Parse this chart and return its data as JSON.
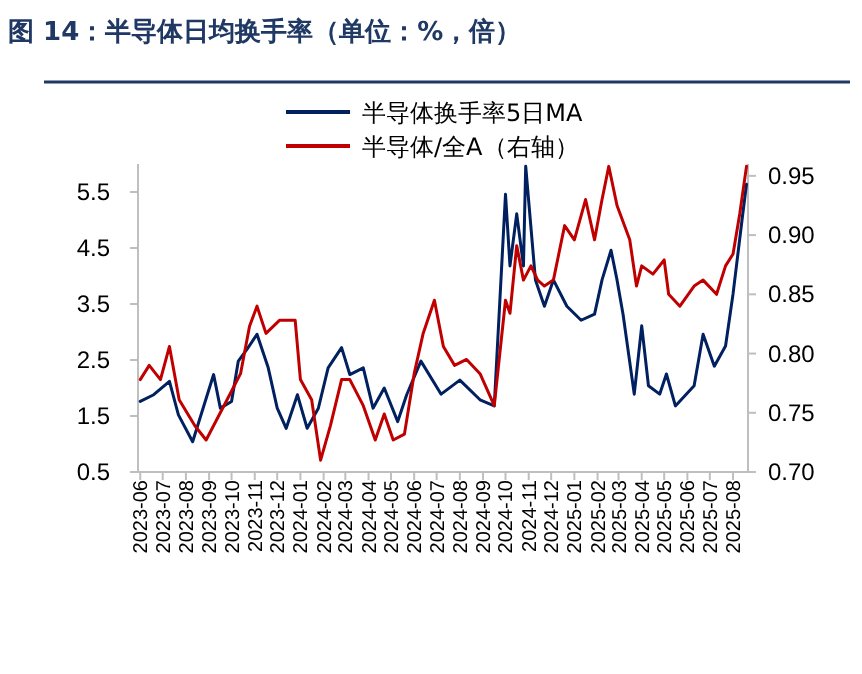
{
  "chart_data": {
    "type": "line",
    "title": "图 14：半导体日均换手率（单位：%，倍）",
    "legend": "top",
    "xlim": [
      "2023-05-29",
      "2025-08-21"
    ],
    "xticks": [
      "2023-06",
      "2023-07",
      "2023-08",
      "2023-09",
      "2023-10",
      "2023-11",
      "2023-12",
      "2024-01",
      "2024-02",
      "2024-03",
      "2024-04",
      "2024-05",
      "2024-06",
      "2024-07",
      "2024-08",
      "2024-09",
      "2024-10",
      "2024-11",
      "2024-12",
      "2025-01",
      "2025-02",
      "2025-03",
      "2025-04",
      "2025-05",
      "2025-06",
      "2025-07",
      "2025-08"
    ],
    "ylim": [
      0.5,
      6.0
    ],
    "yticks": [
      0.5,
      1.5,
      2.5,
      3.5,
      4.5,
      5.5
    ],
    "y2lim": [
      0.7,
      0.96
    ],
    "y2ticks": [
      {
        "value": 0.7,
        "label": "0.70"
      },
      0.75,
      {
        "value": 0.8,
        "label": "0.80"
      },
      0.85,
      {
        "value": 0.9,
        "label": "0.90"
      },
      0.95
    ],
    "series": [
      {
        "name": "半导体换手率5日MA",
        "color": "#002060",
        "x": [
          "2023-06-01",
          "2023-06-19",
          "2023-07-10",
          "2023-07-22",
          "2023-08-10",
          "2023-09-07",
          "2023-09-16",
          "2023-10-01",
          "2023-10-10",
          "2023-10-22",
          "2023-11-04",
          "2023-11-19",
          "2023-12-01",
          "2023-12-13",
          "2023-12-28",
          "2024-01-10",
          "2024-01-25",
          "2024-02-07",
          "2024-02-25",
          "2024-03-07",
          "2024-03-25",
          "2024-04-07",
          "2024-04-22",
          "2024-05-10",
          "2024-05-22",
          "2024-06-10",
          "2024-07-07",
          "2024-08-01",
          "2024-08-28",
          "2024-09-16",
          "2024-10-01",
          "2024-10-07",
          "2024-10-16",
          "2024-10-25",
          "2024-10-28",
          "2024-11-10",
          "2024-11-22",
          "2024-12-04",
          "2024-12-22",
          "2025-01-10",
          "2025-01-28",
          "2025-02-07",
          "2025-02-19",
          "2025-02-27",
          "2025-03-07",
          "2025-03-22",
          "2025-04-01",
          "2025-04-10",
          "2025-04-25",
          "2025-05-04",
          "2025-05-16",
          "2025-06-10",
          "2025-06-22",
          "2025-07-07",
          "2025-07-22",
          "2025-08-01",
          "2025-08-13",
          "2025-08-19"
        ],
        "values": [
          1.76,
          1.88,
          2.12,
          1.52,
          1.04,
          2.24,
          1.64,
          1.76,
          2.48,
          2.7,
          2.96,
          2.36,
          1.64,
          1.28,
          1.88,
          1.28,
          1.64,
          2.36,
          2.72,
          2.24,
          2.36,
          1.64,
          2.0,
          1.4,
          1.88,
          2.48,
          1.89,
          2.14,
          1.79,
          1.68,
          5.46,
          4.18,
          5.11,
          4.18,
          5.96,
          3.93,
          3.46,
          3.93,
          3.46,
          3.21,
          3.32,
          3.93,
          4.46,
          3.93,
          3.32,
          1.89,
          3.11,
          2.04,
          1.89,
          2.25,
          1.68,
          2.04,
          2.96,
          2.39,
          2.75,
          3.68,
          5.0,
          5.64
        ]
      },
      {
        "name": "半导体/全A（右轴）",
        "color": "#c00000",
        "axis": "y2",
        "x": [
          "2023-06-01",
          "2023-06-13",
          "2023-06-28",
          "2023-07-10",
          "2023-07-23",
          "2023-08-13",
          "2023-08-28",
          "2023-09-25",
          "2023-10-13",
          "2023-10-25",
          "2023-11-04",
          "2023-11-16",
          "2023-12-04",
          "2023-12-25",
          "2024-01-01",
          "2024-01-16",
          "2024-01-28",
          "2024-02-10",
          "2024-02-25",
          "2024-03-07",
          "2024-03-25",
          "2024-04-10",
          "2024-04-22",
          "2024-05-04",
          "2024-05-19",
          "2024-06-01",
          "2024-06-13",
          "2024-06-28",
          "2024-07-10",
          "2024-07-25",
          "2024-08-10",
          "2024-08-28",
          "2024-09-16",
          "2024-10-01",
          "2024-10-07",
          "2024-10-16",
          "2024-10-25",
          "2024-11-04",
          "2024-11-13",
          "2024-11-22",
          "2024-12-04",
          "2024-12-19",
          "2025-01-01",
          "2025-01-16",
          "2025-01-28",
          "2025-02-07",
          "2025-02-16",
          "2025-02-27",
          "2025-03-16",
          "2025-03-25",
          "2025-04-01",
          "2025-04-16",
          "2025-05-01",
          "2025-05-07",
          "2025-05-22",
          "2025-06-10",
          "2025-06-22",
          "2025-07-10",
          "2025-07-22",
          "2025-08-01",
          "2025-08-10",
          "2025-08-19"
        ],
        "values": [
          0.778,
          0.79,
          0.778,
          0.806,
          0.761,
          0.739,
          0.727,
          0.761,
          0.783,
          0.823,
          0.84,
          0.817,
          0.828,
          0.828,
          0.778,
          0.761,
          0.71,
          0.739,
          0.778,
          0.778,
          0.756,
          0.727,
          0.749,
          0.727,
          0.732,
          0.783,
          0.817,
          0.845,
          0.806,
          0.79,
          0.795,
          0.783,
          0.756,
          0.845,
          0.834,
          0.891,
          0.862,
          0.874,
          0.862,
          0.857,
          0.862,
          0.908,
          0.896,
          0.93,
          0.896,
          0.93,
          0.958,
          0.925,
          0.896,
          0.857,
          0.874,
          0.867,
          0.879,
          0.85,
          0.84,
          0.857,
          0.862,
          0.85,
          0.874,
          0.884,
          0.918,
          0.958
        ]
      }
    ]
  }
}
